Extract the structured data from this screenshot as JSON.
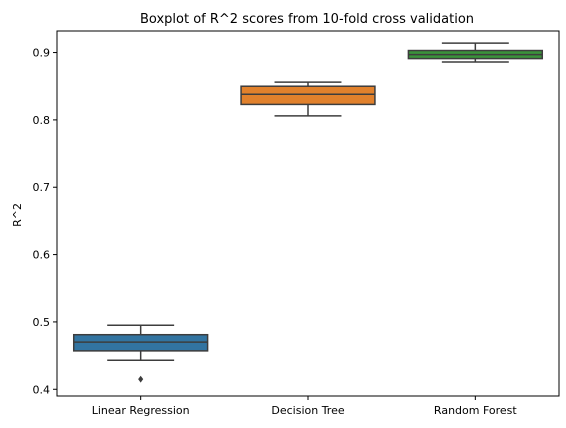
{
  "chart_data": {
    "type": "boxplot",
    "title": "Boxplot of R^2 scores from 10-fold cross validation",
    "xlabel": "",
    "ylabel": "R^2",
    "ylim": [
      0.39,
      0.932
    ],
    "yticks": [
      0.4,
      0.5,
      0.6,
      0.7,
      0.8,
      0.9
    ],
    "grid": false,
    "categories": [
      "Linear Regression",
      "Decision Tree",
      "Random Forest"
    ],
    "boxes": [
      {
        "category": "Linear Regression",
        "color": "#3274a1",
        "whisker_low": 0.443,
        "q1": 0.457,
        "median": 0.47,
        "q3": 0.481,
        "whisker_high": 0.495,
        "outliers": [
          0.415
        ]
      },
      {
        "category": "Decision Tree",
        "color": "#e1812c",
        "whisker_low": 0.806,
        "q1": 0.823,
        "median": 0.838,
        "q3": 0.85,
        "whisker_high": 0.856,
        "outliers": []
      },
      {
        "category": "Random Forest",
        "color": "#3a923a",
        "whisker_low": 0.886,
        "q1": 0.891,
        "median": 0.897,
        "q3": 0.903,
        "whisker_high": 0.914,
        "outliers": []
      }
    ]
  }
}
